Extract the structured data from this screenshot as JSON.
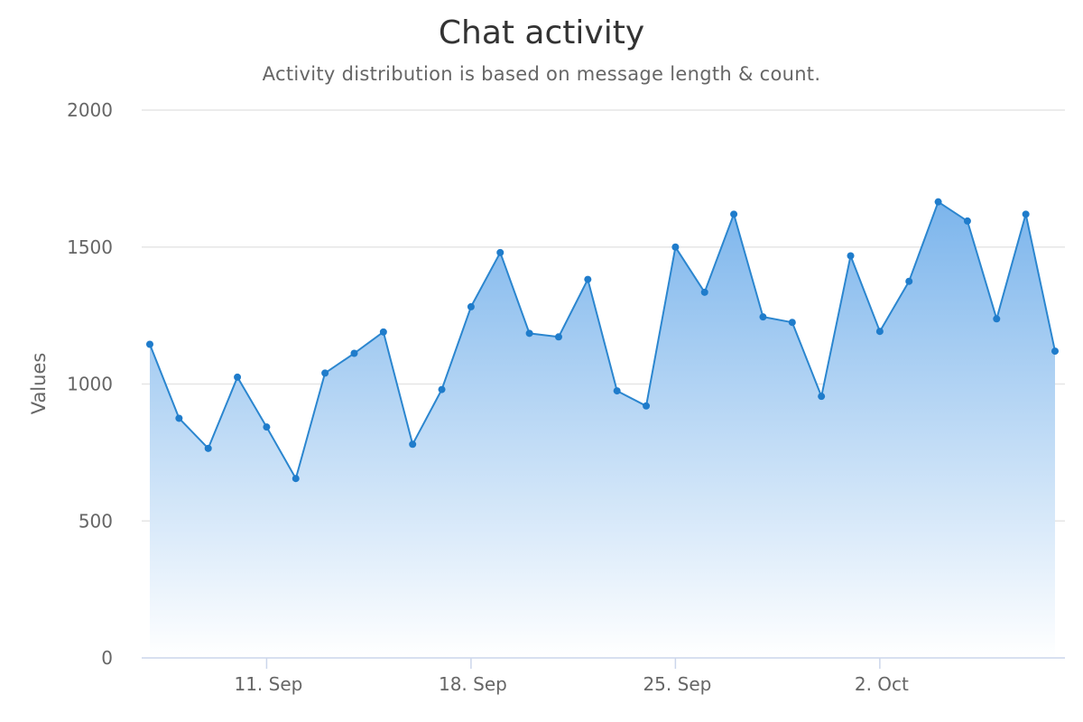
{
  "chart_data": {
    "type": "area",
    "title": "Chat activity",
    "subtitle": "Activity distribution is based on message length & count.",
    "xlabel": "",
    "ylabel": "Values",
    "ylim": [
      0,
      2000
    ],
    "yticks": [
      0,
      500,
      1000,
      1500,
      2000
    ],
    "xlim": [
      "2023-09-07",
      "2023-10-08"
    ],
    "xticks": [
      {
        "date": "2023-09-11",
        "label": "11. Sep"
      },
      {
        "date": "2023-09-18",
        "label": "18. Sep"
      },
      {
        "date": "2023-09-25",
        "label": "25. Sep"
      },
      {
        "date": "2023-10-02",
        "label": "2. Oct"
      }
    ],
    "grid": true,
    "legend": false,
    "colors": {
      "line": "#2b86cf",
      "fill_top": "#7cb5ec",
      "fill_bottom": "#ffffff",
      "point": "#1f7ccb"
    },
    "x": [
      "2023-09-07",
      "2023-09-08",
      "2023-09-09",
      "2023-09-10",
      "2023-09-11",
      "2023-09-12",
      "2023-09-13",
      "2023-09-14",
      "2023-09-15",
      "2023-09-16",
      "2023-09-17",
      "2023-09-18",
      "2023-09-19",
      "2023-09-20",
      "2023-09-21",
      "2023-09-22",
      "2023-09-23",
      "2023-09-24",
      "2023-09-25",
      "2023-09-26",
      "2023-09-27",
      "2023-09-28",
      "2023-09-29",
      "2023-09-30",
      "2023-10-01",
      "2023-10-02",
      "2023-10-03",
      "2023-10-04",
      "2023-10-05",
      "2023-10-06",
      "2023-10-07",
      "2023-10-08"
    ],
    "series": [
      {
        "values": [
          1145,
          875,
          765,
          1025,
          843,
          655,
          1040,
          1112,
          1190,
          780,
          980,
          1282,
          1480,
          1185,
          1172,
          1382,
          975,
          920,
          1500,
          1335,
          1620,
          1245,
          1225,
          955,
          1468,
          1192,
          1375,
          1665,
          1595,
          1238,
          1620,
          1120
        ]
      }
    ]
  }
}
